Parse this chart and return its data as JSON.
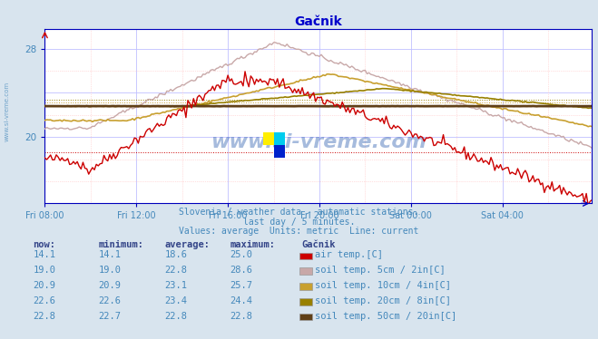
{
  "title": "Gačnik",
  "bg_color": "#d8e4ee",
  "plot_bg_color": "#ffffff",
  "grid_color_major": "#c0c0ff",
  "grid_color_minor": "#ffc0c0",
  "title_color": "#0000cc",
  "axis_color": "#0000bb",
  "text_color": "#4488bb",
  "subtitle_lines": [
    "Slovenia / weather data - automatic stations.",
    "last day / 5 minutes.",
    "Values: average  Units: metric  Line: current"
  ],
  "xtick_labels": [
    "Fri 08:00",
    "Fri 12:00",
    "Fri 16:00",
    "Fri 20:00",
    "Sat 00:00",
    "Sat 04:00"
  ],
  "xtick_positions": [
    0,
    48,
    96,
    144,
    192,
    240
  ],
  "ytick_labels": [
    "20",
    "28"
  ],
  "ytick_positions": [
    20,
    28
  ],
  "ymin": 14.0,
  "ymax": 29.8,
  "xmin": 0,
  "xmax": 287,
  "series": {
    "air_temp": {
      "color": "#cc0000",
      "lw": 1.0,
      "now": 14.1,
      "min": 14.1,
      "avg": 18.6,
      "max": 25.0,
      "label": "air temp.[C]"
    },
    "soil_5cm": {
      "color": "#c8a8a8",
      "lw": 1.0,
      "now": 19.0,
      "min": 19.0,
      "avg": 22.8,
      "max": 28.6,
      "label": "soil temp. 5cm / 2in[C]"
    },
    "soil_10cm": {
      "color": "#c8a030",
      "lw": 1.2,
      "now": 20.9,
      "min": 20.9,
      "avg": 23.1,
      "max": 25.7,
      "label": "soil temp. 10cm / 4in[C]"
    },
    "soil_20cm": {
      "color": "#988000",
      "lw": 1.2,
      "now": 22.6,
      "min": 22.6,
      "avg": 23.4,
      "max": 24.4,
      "label": "soil temp. 20cm / 8in[C]"
    },
    "soil_50cm": {
      "color": "#604018",
      "lw": 2.0,
      "now": 22.8,
      "min": 22.7,
      "avg": 22.8,
      "max": 22.8,
      "label": "soil temp. 50cm / 20in[C]"
    }
  },
  "legend_colors": {
    "air_temp": "#cc0000",
    "soil_5cm": "#c8a8a8",
    "soil_10cm": "#c8a030",
    "soil_20cm": "#988000",
    "soil_50cm": "#604018"
  },
  "table": {
    "headers": [
      "now:",
      "minimum:",
      "average:",
      "maximum:",
      "Gačnik"
    ],
    "rows": [
      [
        "14.1",
        "14.1",
        "18.6",
        "25.0",
        "air_temp",
        "air temp.[C]"
      ],
      [
        "19.0",
        "19.0",
        "22.8",
        "28.6",
        "soil_5cm",
        "soil temp. 5cm / 2in[C]"
      ],
      [
        "20.9",
        "20.9",
        "23.1",
        "25.7",
        "soil_10cm",
        "soil temp. 10cm / 4in[C]"
      ],
      [
        "22.6",
        "22.6",
        "23.4",
        "24.4",
        "soil_20cm",
        "soil temp. 20cm / 8in[C]"
      ],
      [
        "22.8",
        "22.7",
        "22.8",
        "22.8",
        "soil_50cm",
        "soil temp. 50cm / 20in[C]"
      ]
    ]
  },
  "watermark": "www.si-vreme.com",
  "watermark_color": "#2255aa",
  "logo_colors": [
    "#ffff00",
    "#00ccff",
    "#0000cc"
  ]
}
